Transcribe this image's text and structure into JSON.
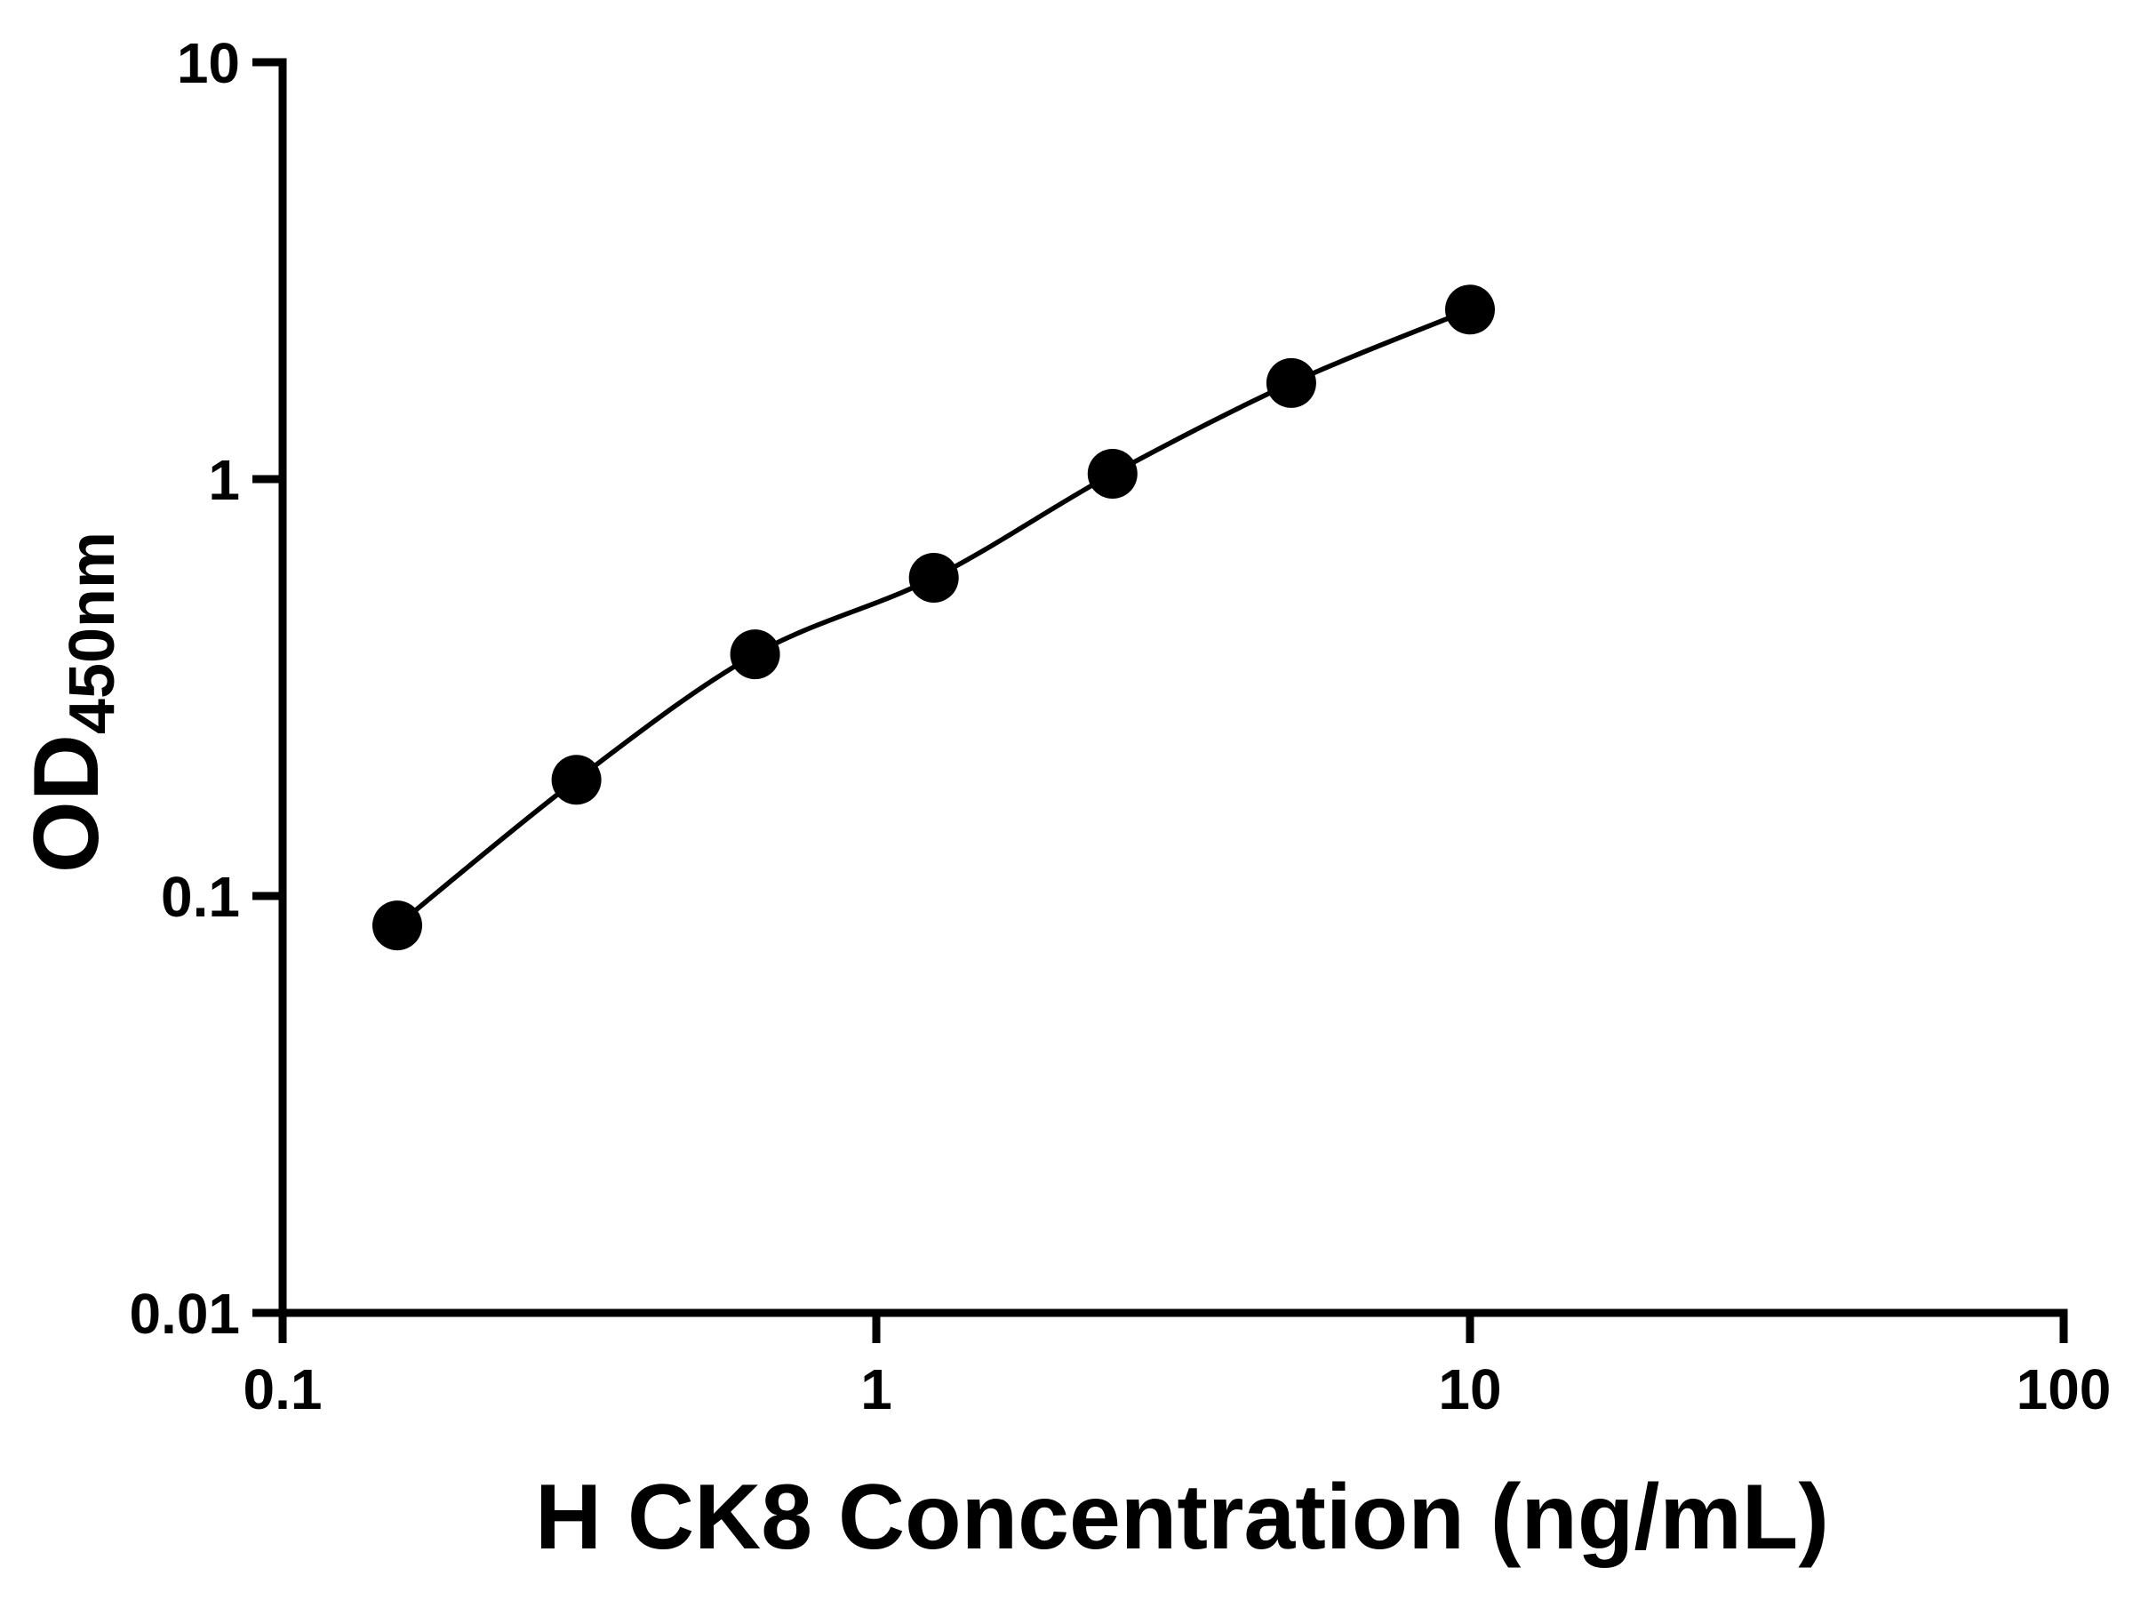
{
  "page": {
    "background": "#ffffff",
    "foreground": "#000000"
  },
  "chart_data": {
    "type": "scatter",
    "title": "",
    "xlabel": "H CK8 Concentration (ng/mL)",
    "ylabel_main": "OD",
    "ylabel_sub": "450nm",
    "xscale": "log",
    "yscale": "log",
    "xlim": [
      0.1,
      100
    ],
    "ylim": [
      0.01,
      10
    ],
    "x_tick_values": [
      0.1,
      1,
      10,
      100
    ],
    "x_tick_labels": [
      "0.1",
      "1",
      "10",
      "100"
    ],
    "y_tick_values": [
      0.01,
      0.1,
      1,
      10
    ],
    "y_tick_labels": [
      "0.01",
      "0.1",
      "1",
      "10"
    ],
    "grid": false,
    "legend": "none",
    "series": [
      {
        "x": [
          0.156,
          0.3125,
          0.625,
          1.25,
          2.5,
          5,
          10
        ],
        "y": [
          0.085,
          0.19,
          0.38,
          0.58,
          1.03,
          1.7,
          2.55
        ],
        "marker": "circle",
        "marker_color": "#000000",
        "line_color": "#000000",
        "line": "smooth"
      }
    ]
  }
}
